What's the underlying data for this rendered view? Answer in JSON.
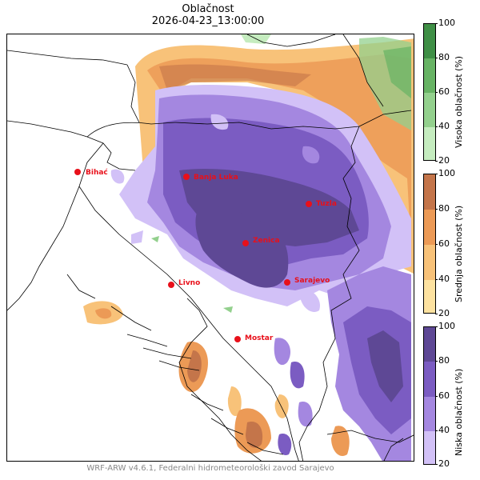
{
  "title": "Oblačnost",
  "datetime": "2026-04-23_13:00:00",
  "credit": "WRF-ARW v4.6.1, Federalni hidrometeorološki zavod Sarajevo",
  "cities": [
    {
      "name": "Bihać"
    },
    {
      "name": "Banja Luka"
    },
    {
      "name": "Tuzla"
    },
    {
      "name": "Zenica"
    },
    {
      "name": "Livno"
    },
    {
      "name": "Sarajevo"
    },
    {
      "name": "Mostar"
    }
  ],
  "colorbars": [
    {
      "label": "Visoka oblačnost (%)",
      "ticks": [
        "100",
        "80",
        "60",
        "40",
        "20"
      ],
      "colors": [
        "#3f8f46",
        "#67b364",
        "#93d08d",
        "#c5ecbf"
      ]
    },
    {
      "label": "Srednja oblačnost (%)",
      "ticks": [
        "100",
        "80",
        "60",
        "40",
        "20"
      ],
      "colors": [
        "#c4754a",
        "#ec9a56",
        "#f8c279",
        "#fde2a0"
      ]
    },
    {
      "label": "Niska oblačnost (%)",
      "ticks": [
        "100",
        "80",
        "60",
        "40",
        "20"
      ],
      "colors": [
        "#5e4895",
        "#7b5cc2",
        "#a487e0",
        "#d2c1f7"
      ]
    }
  ],
  "colors": {
    "city_marker": "#e8101a",
    "title": "#000000",
    "credit": "#888888"
  }
}
